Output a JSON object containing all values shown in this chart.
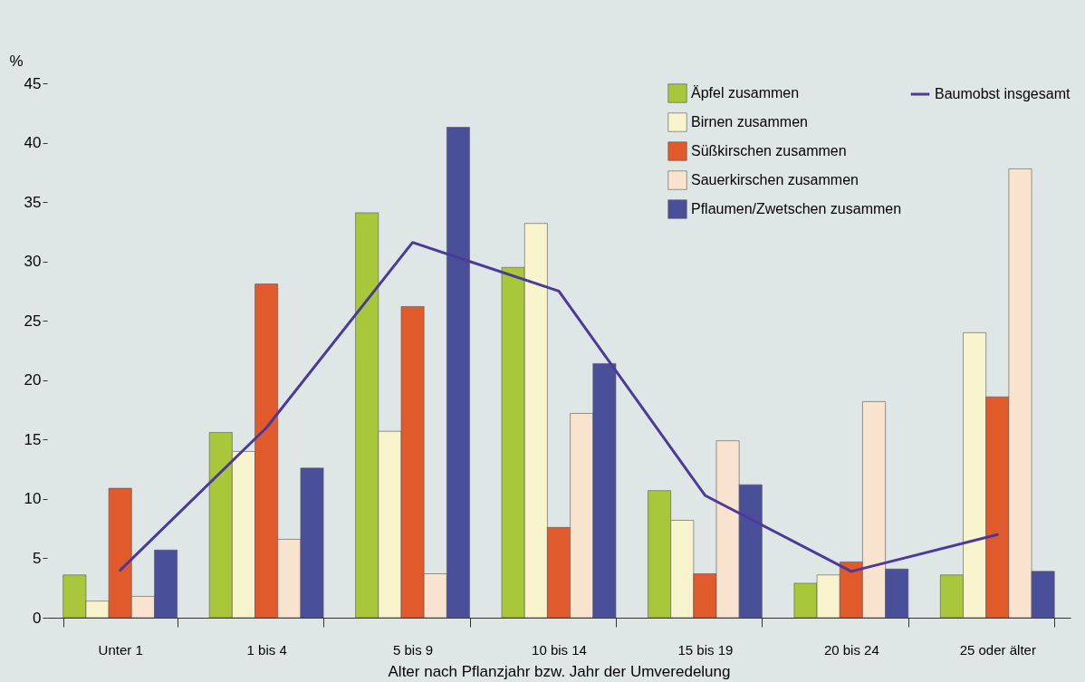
{
  "chart_data": {
    "type": "bar",
    "ylabel": "%",
    "xlabel": "Alter nach Pflanzjahr bzw. Jahr der Umveredelung",
    "categories": [
      "Unter 1",
      "1 bis 4",
      "5 bis 9",
      "10 bis 14",
      "15 bis 19",
      "20 bis 24",
      "25 oder älter"
    ],
    "series": [
      {
        "name": "Äpfel zusammen",
        "color": "#a9c73a",
        "values": [
          3.6,
          15.6,
          34.1,
          29.5,
          10.7,
          2.9,
          3.6
        ]
      },
      {
        "name": "Birnen zusammen",
        "color": "#f7f3cc",
        "values": [
          1.4,
          14.0,
          15.7,
          33.2,
          8.2,
          3.6,
          24.0
        ]
      },
      {
        "name": "Süßkirschen zusammen",
        "color": "#e05a2b",
        "values": [
          10.9,
          28.1,
          26.2,
          7.6,
          3.7,
          4.7,
          18.6
        ]
      },
      {
        "name": "Sauerkirschen zusammen",
        "color": "#f8e3cf",
        "values": [
          1.8,
          6.6,
          3.7,
          17.2,
          14.9,
          18.2,
          37.8
        ]
      },
      {
        "name": "Pflaumen/Zwetschen zusammen",
        "color": "#4a4f9a",
        "values": [
          5.7,
          12.6,
          41.3,
          21.4,
          11.2,
          4.1,
          3.9
        ]
      },
      {
        "name": "Baumobst insgesamt",
        "type": "line",
        "color": "#4b3a9a",
        "values": [
          4.0,
          16.0,
          31.6,
          27.5,
          10.3,
          3.9,
          7.0
        ]
      }
    ],
    "ylim": [
      0,
      45
    ],
    "yticks": [
      0,
      5,
      10,
      15,
      20,
      25,
      30,
      35,
      40,
      45
    ],
    "grid": false,
    "legend": "top right"
  }
}
